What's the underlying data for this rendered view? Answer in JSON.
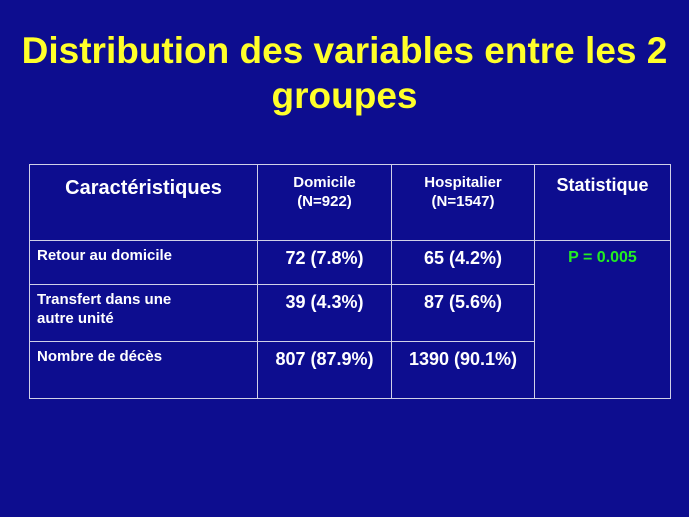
{
  "slide": {
    "title_line1": "Distribution des variables entre les 2",
    "title_line2": "groupes"
  },
  "table": {
    "headers": {
      "characteristics": "Caractéristiques",
      "home_line1": "Domicile",
      "home_line2": "(N=922)",
      "hospital_line1": "Hospitalier",
      "hospital_line2": "(N=1547)",
      "statistic": "Statistique"
    },
    "rows": [
      {
        "label_line1": "Retour au domicile",
        "label_line2": "",
        "home": "72 (7.8%)",
        "hospital": "65 (4.2%)"
      },
      {
        "label_line1": "Transfert dans une",
        "label_line2": "autre unité",
        "home": "39 (4.3%)",
        "hospital": "87 (5.6%)"
      },
      {
        "label_line1": "Nombre de décès",
        "label_line2": "",
        "home": "807 (87.9%)",
        "hospital": "1390 (90.1%)"
      }
    ],
    "p_value": "P = 0.005"
  },
  "colors": {
    "background": "#0d0d8f",
    "title": "#ffff2a",
    "text": "#ffffff",
    "p_value": "#22ee22",
    "border": "#d0d0e8"
  }
}
